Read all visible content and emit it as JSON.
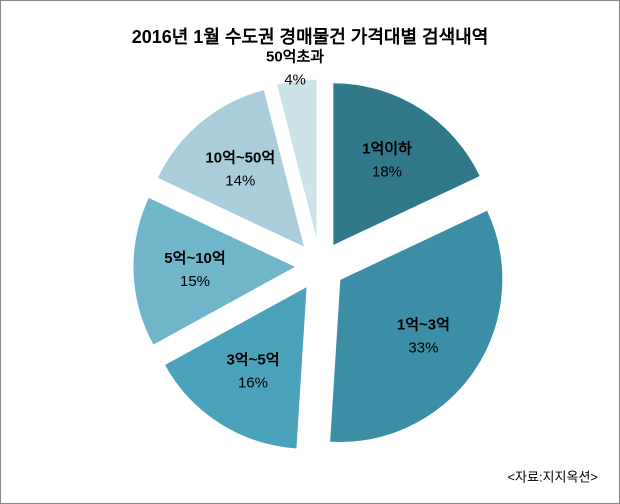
{
  "chart_data": {
    "type": "pie",
    "title": "2016년 1월 수도권 경매물건 가격대별 검색내역",
    "categories": [
      "1억이하",
      "1억~3억",
      "3억~5억",
      "5억~10억",
      "10억~50억",
      "50억초과"
    ],
    "values": [
      18,
      33,
      16,
      15,
      14,
      4
    ],
    "value_labels": [
      "18%",
      "33%",
      "16%",
      "15%",
      "14%",
      "4%"
    ],
    "colors": [
      "#31788a",
      "#3b8ea5",
      "#4aa3ba",
      "#71b5ca",
      "#a9cdda",
      "#cde3ea"
    ],
    "note": "<자료:지지옥션>"
  }
}
